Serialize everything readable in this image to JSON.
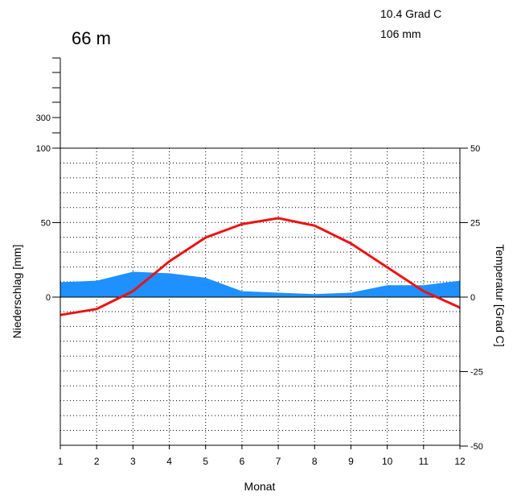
{
  "chart_data": {
    "type": "line",
    "title": "66 m",
    "annotations": [
      "10.4 Grad C",
      "106 mm"
    ],
    "xlabel": "Monat",
    "ylabel_left": "Niederschlag [mm]",
    "ylabel_right": "Temperatur [Grad C]",
    "x": [
      1,
      2,
      3,
      4,
      5,
      6,
      7,
      8,
      9,
      10,
      11,
      12
    ],
    "x_ticks": [
      "1",
      "2",
      "3",
      "4",
      "5",
      "6",
      "7",
      "8",
      "9",
      "10",
      "11",
      "12"
    ],
    "left_ticks": [
      "300",
      "100",
      "50",
      "0"
    ],
    "right_ticks": [
      "50",
      "25",
      "0",
      "-25",
      "-50"
    ],
    "right_ylim": [
      -50,
      50
    ],
    "grid": true,
    "series": [
      {
        "axis": "left",
        "kind": "area",
        "color": "#1e90ff",
        "values": [
          10,
          11,
          17,
          16,
          13,
          4,
          3,
          2,
          3,
          8,
          8,
          11
        ]
      },
      {
        "axis": "right",
        "kind": "line",
        "color": "#ee1111",
        "values": [
          -6,
          -4,
          2,
          12,
          20,
          24.5,
          26.5,
          24,
          18,
          10,
          2,
          -3.5
        ]
      }
    ]
  }
}
